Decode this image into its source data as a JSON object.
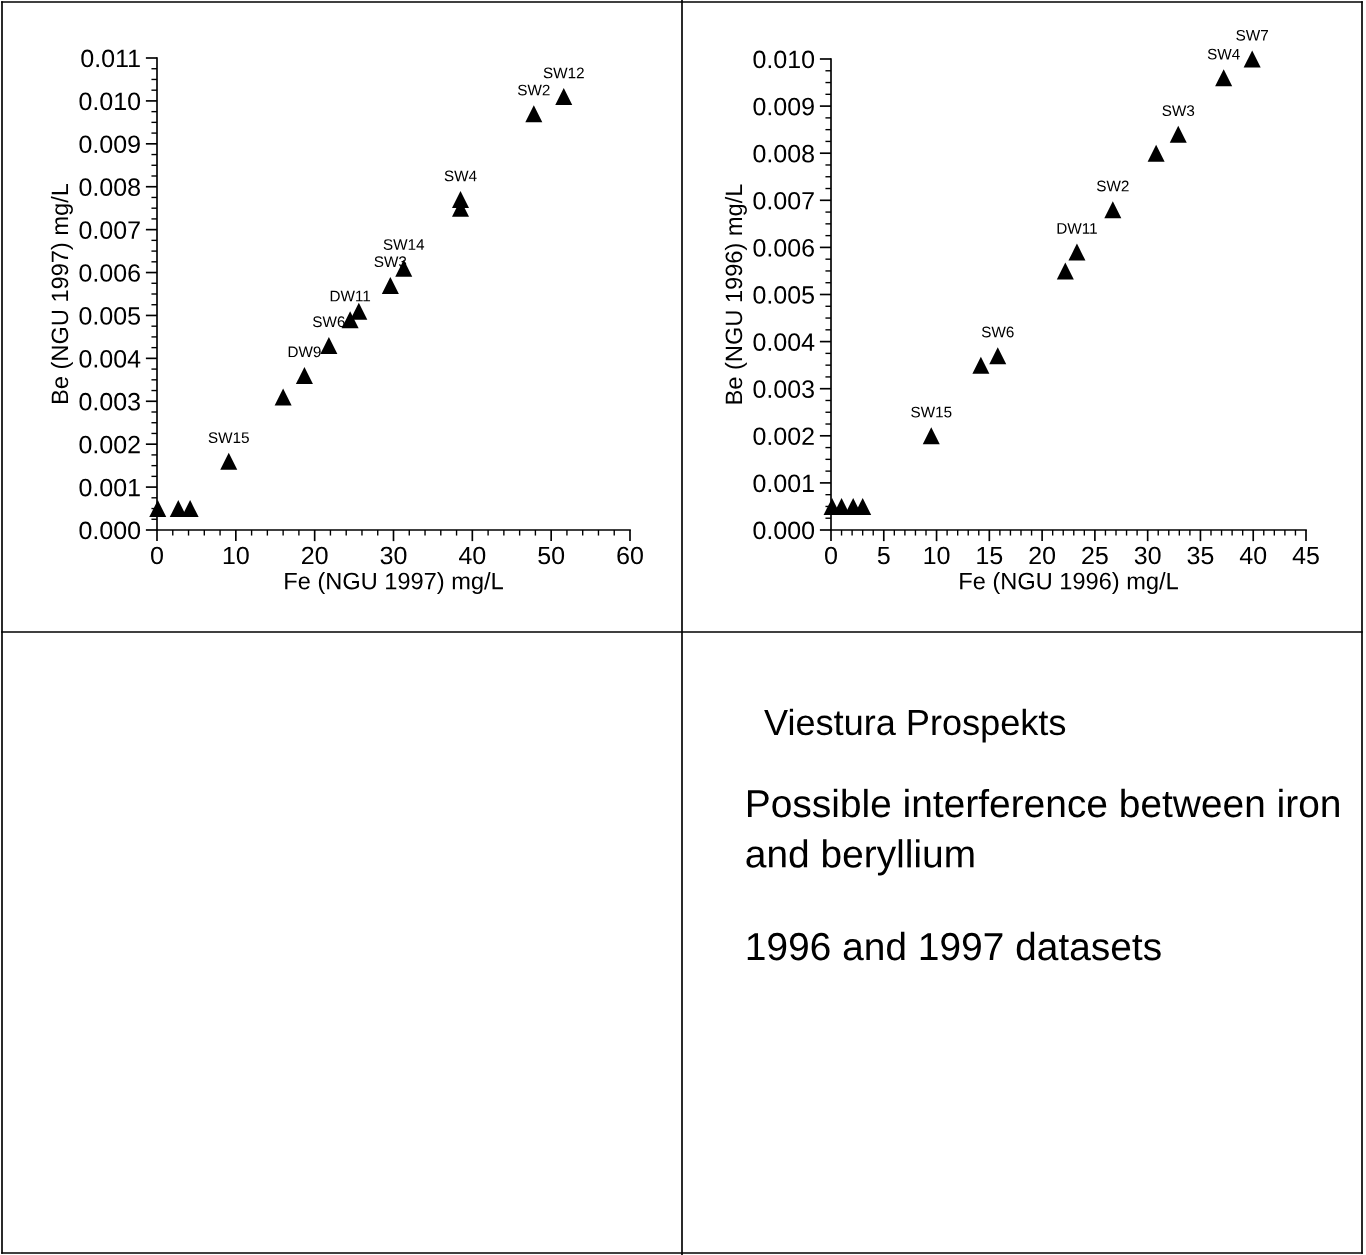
{
  "chart_data": [
    {
      "type": "scatter",
      "xlabel": "Fe (NGU 1997) mg/L",
      "ylabel": "Be (NGU 1997) mg/L",
      "marker": "triangle",
      "color": "#000000",
      "grid": false,
      "legend": false,
      "x": [
        0.1,
        2.7,
        4.2,
        9.1,
        16.0,
        18.7,
        21.8,
        24.5,
        25.6,
        29.6,
        31.3,
        38.5,
        38.5,
        47.8,
        51.6
      ],
      "values": [
        0.0005,
        0.0005,
        0.0005,
        0.0016,
        0.0031,
        0.0036,
        0.0043,
        0.0049,
        0.0051,
        0.0057,
        0.0061,
        0.0077,
        0.0075,
        0.0097,
        0.0101
      ],
      "xlim": [
        0,
        60
      ],
      "xticks": [
        0,
        10,
        20,
        30,
        40,
        50,
        60
      ],
      "ylim": [
        0,
        0.011
      ],
      "yticks": [
        {
          "value": 0,
          "label": "0.000"
        },
        {
          "value": 0.001,
          "label": "0.001"
        },
        {
          "value": 0.002,
          "label": "0.002"
        },
        {
          "value": 0.003,
          "label": "0.003"
        },
        {
          "value": 0.004,
          "label": "0.004"
        },
        {
          "value": 0.005,
          "label": "0.005"
        },
        {
          "value": 0.006,
          "label": "0.006"
        },
        {
          "value": 0.007,
          "label": "0.007"
        },
        {
          "value": 0.008,
          "label": "0.008"
        },
        {
          "value": 0.009,
          "label": "0.009"
        },
        {
          "value": 0.01,
          "label": "0.010"
        },
        {
          "value": 0.011,
          "label": "0.011"
        }
      ],
      "annotations": [
        {
          "text": "SW15",
          "x": 9.1,
          "y": 0.0016
        },
        {
          "text": "DW9",
          "x": 18.7,
          "y": 0.0036
        },
        {
          "text": "SW6",
          "x": 21.8,
          "y": 0.0043
        },
        {
          "text": "DW11",
          "x": 24.5,
          "y": 0.0049
        },
        {
          "text": "SW3",
          "x": 29.6,
          "y": 0.0057
        },
        {
          "text": "SW14",
          "x": 31.3,
          "y": 0.0061
        },
        {
          "text": "SW4",
          "x": 38.5,
          "y": 0.0077
        },
        {
          "text": "SW2",
          "x": 47.8,
          "y": 0.0097
        },
        {
          "text": "SW12",
          "x": 51.6,
          "y": 0.0101
        }
      ]
    },
    {
      "type": "scatter",
      "xlabel": "Fe (NGU 1996) mg/L",
      "ylabel": "Be (NGU 1996) mg/L",
      "marker": "triangle",
      "color": "#000000",
      "grid": false,
      "legend": false,
      "x": [
        0.1,
        1.0,
        2.1,
        3.0,
        9.5,
        14.2,
        15.8,
        22.2,
        23.3,
        26.7,
        30.8,
        32.9,
        37.2,
        39.9
      ],
      "values": [
        0.0005,
        0.0005,
        0.0005,
        0.0005,
        0.002,
        0.0035,
        0.0037,
        0.0055,
        0.0059,
        0.0068,
        0.008,
        0.0084,
        0.0096,
        0.01
      ],
      "xlim": [
        0,
        45
      ],
      "xticks": [
        0,
        5,
        10,
        15,
        20,
        25,
        30,
        35,
        40,
        45
      ],
      "ylim": [
        0,
        0.01
      ],
      "yticks": [
        {
          "value": 0,
          "label": "0.000"
        },
        {
          "value": 0.001,
          "label": "0.001"
        },
        {
          "value": 0.002,
          "label": "0.002"
        },
        {
          "value": 0.003,
          "label": "0.003"
        },
        {
          "value": 0.004,
          "label": "0.004"
        },
        {
          "value": 0.005,
          "label": "0.005"
        },
        {
          "value": 0.006,
          "label": "0.006"
        },
        {
          "value": 0.007,
          "label": "0.007"
        },
        {
          "value": 0.008,
          "label": "0.008"
        },
        {
          "value": 0.009,
          "label": "0.009"
        },
        {
          "value": 0.01,
          "label": "0.010"
        }
      ],
      "annotations": [
        {
          "text": "SW15",
          "x": 9.5,
          "y": 0.002
        },
        {
          "text": "SW6",
          "x": 15.8,
          "y": 0.0037
        },
        {
          "text": "DW11",
          "x": 23.3,
          "y": 0.0059
        },
        {
          "text": "SW2",
          "x": 26.7,
          "y": 0.0068
        },
        {
          "text": "SW3",
          "x": 32.9,
          "y": 0.0084
        },
        {
          "text": "SW4",
          "x": 37.2,
          "y": 0.0096
        },
        {
          "text": "SW7",
          "x": 39.9,
          "y": 0.01
        }
      ]
    },
    {
      "type": "other",
      "title": "Viestura Prospekts",
      "annotations": [
        "Possible interference between iron and beryllium",
        "1996 and 1997 datasets"
      ]
    }
  ]
}
